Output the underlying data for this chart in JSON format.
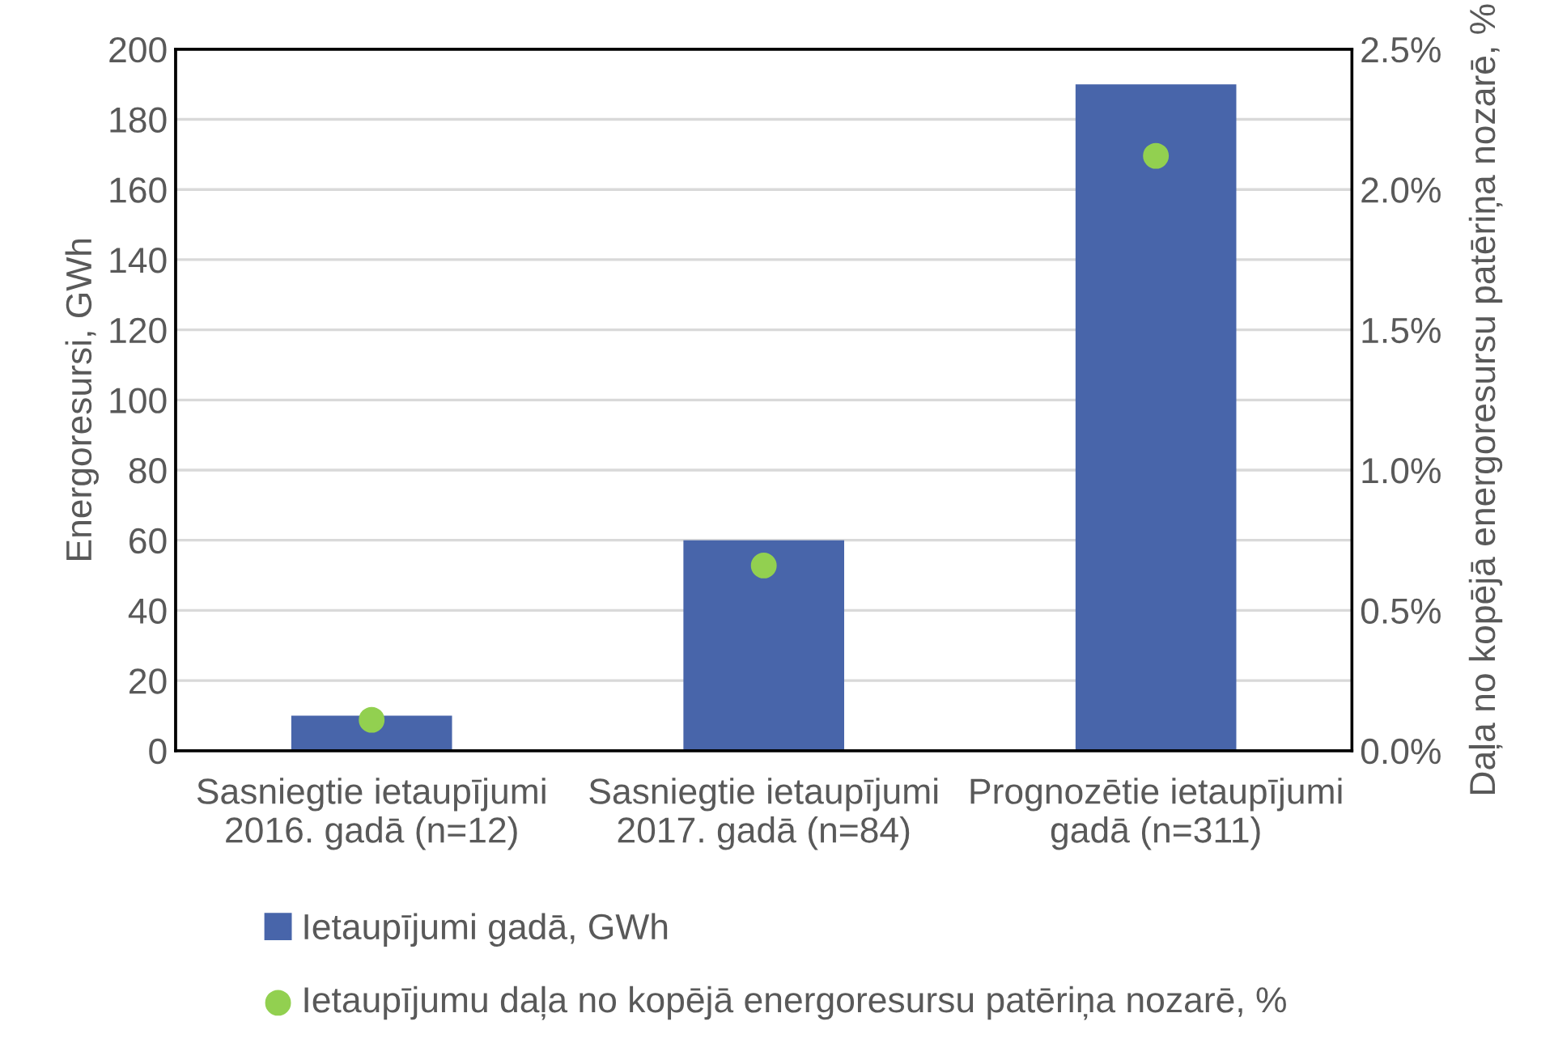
{
  "chart_data": {
    "type": "bar",
    "categories": [
      "Sasniegtie ietaupījumi\n2016. gadā (n=12)",
      "Sasniegtie ietaupījumi\n2017. gadā (n=84)",
      "Prognozētie ietaupījumi\ngadā (n=311)"
    ],
    "series": [
      {
        "name": "Ietaupījumi gadā, GWh",
        "color": "#4865aa",
        "values": [
          10,
          60,
          190
        ]
      },
      {
        "name": "Ietaupījumu daļa no kopējā energoresursu patēriņa nozarē, %",
        "color": "#92d050",
        "type": "scatter",
        "axis": "y2",
        "marker": "circle",
        "values": [
          0.11,
          0.66,
          2.12
        ]
      }
    ],
    "ylabel": "Energoresursi, GWh",
    "y2label": "Daļa no kopējā energoresursu patēriņa nozarē, %",
    "ylim": [
      0,
      200
    ],
    "yticks": [
      0,
      20,
      40,
      60,
      80,
      100,
      120,
      140,
      160,
      180,
      200
    ],
    "y2lim": [
      0,
      2.5
    ],
    "y2ticks": [
      {
        "value": 0,
        "label": "0.0%"
      },
      {
        "value": 0.5,
        "label": "0.5%"
      },
      {
        "value": 1,
        "label": "1.0%"
      },
      {
        "value": 1.5,
        "label": "1.5%"
      },
      {
        "value": 2,
        "label": "2.0%"
      },
      {
        "value": 2.5,
        "label": "2.5%"
      }
    ],
    "grid": "y",
    "legend": "bottom"
  }
}
